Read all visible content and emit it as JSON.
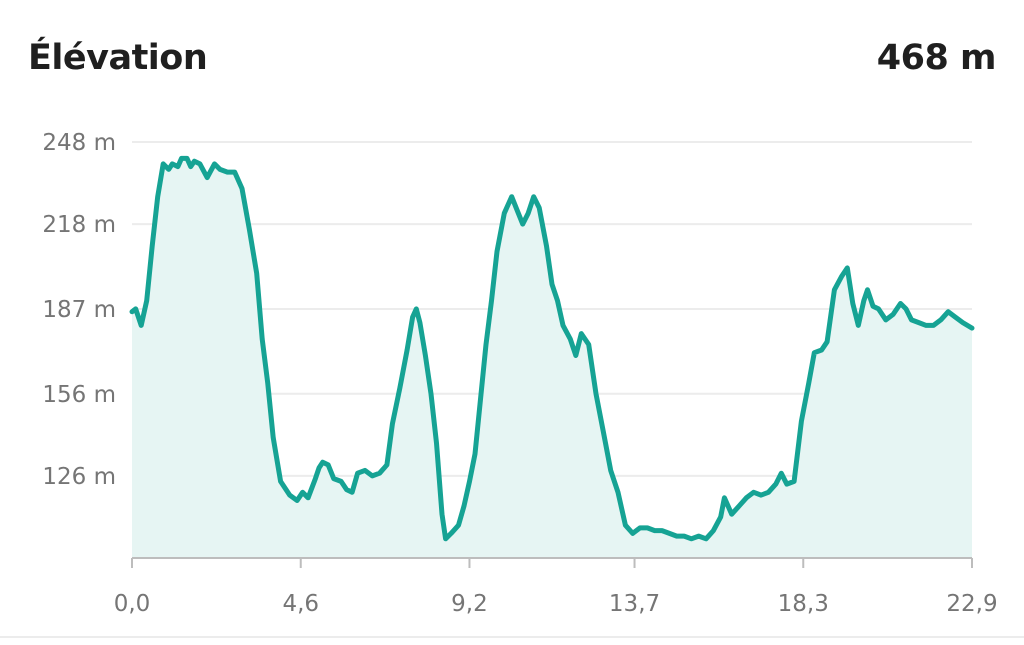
{
  "header": {
    "title": "Élévation",
    "total": "468 m"
  },
  "colors": {
    "line": "#16a394",
    "fill": "#e6f5f3",
    "grid": "#ececec",
    "axis": "#bdbdbd"
  },
  "chart_data": {
    "type": "area",
    "title": "Élévation",
    "xlabel": "",
    "ylabel": "",
    "xlim": [
      0,
      22.9
    ],
    "ylim": [
      96,
      248
    ],
    "grid": true,
    "legend": "none",
    "y_ticks": [
      248,
      218,
      187,
      156,
      126
    ],
    "y_tick_labels": [
      "248 m",
      "218 m",
      "187 m",
      "156 m",
      "126 m"
    ],
    "x_ticks": [
      0,
      4.6,
      9.2,
      13.7,
      18.3,
      22.9
    ],
    "x_tick_labels": [
      "0,0",
      "4,6",
      "9,2",
      "13,7",
      "18,3",
      "22,9"
    ],
    "series": [
      {
        "points": [
          [
            0.0,
            186
          ],
          [
            0.1,
            187
          ],
          [
            0.25,
            181
          ],
          [
            0.4,
            190
          ],
          [
            0.55,
            210
          ],
          [
            0.7,
            228
          ],
          [
            0.85,
            240
          ],
          [
            1.0,
            238
          ],
          [
            1.1,
            240
          ],
          [
            1.25,
            239
          ],
          [
            1.35,
            242
          ],
          [
            1.5,
            242
          ],
          [
            1.6,
            239
          ],
          [
            1.7,
            241
          ],
          [
            1.85,
            240
          ],
          [
            2.05,
            235
          ],
          [
            2.25,
            240
          ],
          [
            2.4,
            238
          ],
          [
            2.6,
            237
          ],
          [
            2.8,
            237
          ],
          [
            3.0,
            231
          ],
          [
            3.2,
            216
          ],
          [
            3.4,
            200
          ],
          [
            3.55,
            176
          ],
          [
            3.7,
            160
          ],
          [
            3.85,
            140
          ],
          [
            4.05,
            124
          ],
          [
            4.3,
            119
          ],
          [
            4.5,
            117
          ],
          [
            4.65,
            120
          ],
          [
            4.8,
            118
          ],
          [
            5.0,
            125
          ],
          [
            5.1,
            129
          ],
          [
            5.2,
            131
          ],
          [
            5.35,
            130
          ],
          [
            5.5,
            125
          ],
          [
            5.7,
            124
          ],
          [
            5.85,
            121
          ],
          [
            6.0,
            120
          ],
          [
            6.15,
            127
          ],
          [
            6.35,
            128
          ],
          [
            6.55,
            126
          ],
          [
            6.75,
            127
          ],
          [
            6.95,
            130
          ],
          [
            7.1,
            145
          ],
          [
            7.3,
            158
          ],
          [
            7.5,
            172
          ],
          [
            7.65,
            184
          ],
          [
            7.75,
            187
          ],
          [
            7.85,
            182
          ],
          [
            8.0,
            170
          ],
          [
            8.15,
            156
          ],
          [
            8.3,
            138
          ],
          [
            8.45,
            112
          ],
          [
            8.55,
            103
          ],
          [
            8.7,
            105
          ],
          [
            8.9,
            108
          ],
          [
            9.05,
            115
          ],
          [
            9.2,
            124
          ],
          [
            9.35,
            134
          ],
          [
            9.5,
            154
          ],
          [
            9.65,
            174
          ],
          [
            9.8,
            190
          ],
          [
            9.95,
            208
          ],
          [
            10.15,
            222
          ],
          [
            10.35,
            228
          ],
          [
            10.5,
            223
          ],
          [
            10.65,
            218
          ],
          [
            10.8,
            222
          ],
          [
            10.95,
            228
          ],
          [
            11.1,
            224
          ],
          [
            11.3,
            210
          ],
          [
            11.45,
            196
          ],
          [
            11.6,
            190
          ],
          [
            11.75,
            181
          ],
          [
            11.95,
            176
          ],
          [
            12.1,
            170
          ],
          [
            12.25,
            178
          ],
          [
            12.45,
            174
          ],
          [
            12.65,
            156
          ],
          [
            12.85,
            142
          ],
          [
            13.05,
            128
          ],
          [
            13.25,
            120
          ],
          [
            13.45,
            108
          ],
          [
            13.65,
            105
          ],
          [
            13.85,
            107
          ],
          [
            14.05,
            107
          ],
          [
            14.25,
            106
          ],
          [
            14.45,
            106
          ],
          [
            14.65,
            105
          ],
          [
            14.85,
            104
          ],
          [
            15.05,
            104
          ],
          [
            15.25,
            103
          ],
          [
            15.45,
            104
          ],
          [
            15.65,
            103
          ],
          [
            15.85,
            106
          ],
          [
            16.05,
            111
          ],
          [
            16.15,
            118
          ],
          [
            16.35,
            112
          ],
          [
            16.55,
            115
          ],
          [
            16.75,
            118
          ],
          [
            16.95,
            120
          ],
          [
            17.15,
            119
          ],
          [
            17.35,
            120
          ],
          [
            17.55,
            123
          ],
          [
            17.7,
            127
          ],
          [
            17.85,
            123
          ],
          [
            18.05,
            124
          ],
          [
            18.25,
            146
          ],
          [
            18.45,
            160
          ],
          [
            18.6,
            171
          ],
          [
            18.8,
            172
          ],
          [
            18.95,
            175
          ],
          [
            19.15,
            194
          ],
          [
            19.35,
            199
          ],
          [
            19.5,
            202
          ],
          [
            19.65,
            189
          ],
          [
            19.8,
            181
          ],
          [
            19.95,
            190
          ],
          [
            20.05,
            194
          ],
          [
            20.2,
            188
          ],
          [
            20.35,
            187
          ],
          [
            20.55,
            183
          ],
          [
            20.75,
            185
          ],
          [
            20.95,
            189
          ],
          [
            21.1,
            187
          ],
          [
            21.25,
            183
          ],
          [
            21.45,
            182
          ],
          [
            21.65,
            181
          ],
          [
            21.85,
            181
          ],
          [
            22.05,
            183
          ],
          [
            22.25,
            186
          ],
          [
            22.45,
            184
          ],
          [
            22.65,
            182
          ],
          [
            22.9,
            180
          ]
        ]
      }
    ]
  }
}
